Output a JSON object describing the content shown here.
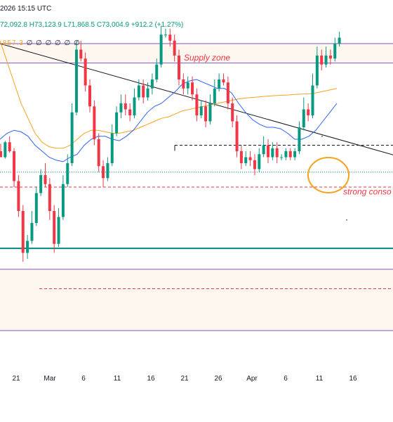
{
  "header": {
    "datetime": "2026 15:15 UTC",
    "ohlc": "72,092.8 H73,123.9 L71,868.5 C73,004.9 +912.2 (+1.27%)",
    "ma_value": ".857.3",
    "ma_rest": "∅ ∅ ∅ ∅ ∅ ∅"
  },
  "annotations": {
    "supply_zone": "Supply zone",
    "consolidation": "strong conso"
  },
  "colors": {
    "up": "#089981",
    "down": "#f23645",
    "ma_blue": "#2962ff",
    "ma_orange": "#f7a21b",
    "support": "#00897b",
    "zone_border": "#7e57c2",
    "zone_fill": "#fdf7ef",
    "circle": "#f7a21b"
  },
  "chart_data": {
    "type": "candlestick",
    "x_tick_labels": [
      "21",
      "Mar",
      "6",
      "11",
      "16",
      "21",
      "26",
      "Apr",
      "6",
      "11",
      "16"
    ],
    "candles": [
      [
        0.64,
        0.62,
        0.665,
        0.625
      ],
      [
        0.62,
        0.67,
        0.615,
        0.675
      ],
      [
        0.67,
        0.64,
        0.69,
        0.635
      ],
      [
        0.64,
        0.54,
        0.65,
        0.52
      ],
      [
        0.54,
        0.44,
        0.56,
        0.42
      ],
      [
        0.44,
        0.3,
        0.46,
        0.27
      ],
      [
        0.3,
        0.34,
        0.28,
        0.36
      ],
      [
        0.34,
        0.4,
        0.33,
        0.44
      ],
      [
        0.4,
        0.5,
        0.39,
        0.52
      ],
      [
        0.5,
        0.56,
        0.49,
        0.58
      ],
      [
        0.56,
        0.53,
        0.6,
        0.52
      ],
      [
        0.53,
        0.44,
        0.55,
        0.41
      ],
      [
        0.44,
        0.33,
        0.46,
        0.3
      ],
      [
        0.33,
        0.42,
        0.32,
        0.45
      ],
      [
        0.42,
        0.53,
        0.41,
        0.56
      ],
      [
        0.53,
        0.6,
        0.52,
        0.63
      ],
      [
        0.6,
        0.77,
        0.59,
        0.8
      ],
      [
        0.77,
        0.98,
        0.76,
        1.01
      ],
      [
        0.98,
        0.95,
        1.01,
        0.94
      ],
      [
        0.95,
        0.86,
        0.97,
        0.84
      ],
      [
        0.86,
        0.79,
        0.88,
        0.77
      ],
      [
        0.79,
        0.68,
        0.81,
        0.66
      ],
      [
        0.68,
        0.59,
        0.7,
        0.57
      ],
      [
        0.59,
        0.55,
        0.61,
        0.52
      ],
      [
        0.55,
        0.6,
        0.54,
        0.62
      ],
      [
        0.6,
        0.7,
        0.59,
        0.73
      ],
      [
        0.7,
        0.77,
        0.69,
        0.79
      ],
      [
        0.77,
        0.8,
        0.75,
        0.83
      ],
      [
        0.8,
        0.78,
        0.83,
        0.76
      ],
      [
        0.78,
        0.76,
        0.8,
        0.74
      ],
      [
        0.76,
        0.82,
        0.75,
        0.85
      ],
      [
        0.82,
        0.86,
        0.81,
        0.88
      ],
      [
        0.86,
        0.82,
        0.88,
        0.8
      ],
      [
        0.82,
        0.85,
        0.81,
        0.87
      ],
      [
        0.85,
        0.88,
        0.83,
        0.9
      ],
      [
        0.88,
        0.93,
        0.87,
        0.95
      ],
      [
        0.93,
        1.03,
        0.92,
        1.06
      ],
      [
        1.03,
        1.03,
        1.05,
        1.02
      ],
      [
        1.03,
        1.01,
        1.05,
        0.99
      ],
      [
        1.01,
        0.96,
        1.03,
        0.94
      ],
      [
        0.96,
        0.88,
        0.98,
        0.86
      ],
      [
        0.88,
        0.85,
        0.9,
        0.83
      ],
      [
        0.85,
        0.87,
        0.83,
        0.89
      ],
      [
        0.87,
        0.83,
        0.89,
        0.81
      ],
      [
        0.83,
        0.76,
        0.85,
        0.74
      ],
      [
        0.76,
        0.79,
        0.75,
        0.81
      ],
      [
        0.79,
        0.74,
        0.81,
        0.72
      ],
      [
        0.74,
        0.8,
        0.73,
        0.83
      ],
      [
        0.8,
        0.85,
        0.79,
        0.88
      ],
      [
        0.85,
        0.88,
        0.84,
        0.9
      ],
      [
        0.88,
        0.87,
        0.9,
        0.86
      ],
      [
        0.87,
        0.8,
        0.89,
        0.78
      ],
      [
        0.8,
        0.74,
        0.82,
        0.72
      ],
      [
        0.74,
        0.64,
        0.76,
        0.62
      ],
      [
        0.64,
        0.6,
        0.66,
        0.58
      ],
      [
        0.6,
        0.62,
        0.59,
        0.64
      ],
      [
        0.62,
        0.61,
        0.64,
        0.59
      ],
      [
        0.61,
        0.58,
        0.63,
        0.56
      ],
      [
        0.58,
        0.63,
        0.57,
        0.65
      ],
      [
        0.63,
        0.66,
        0.62,
        0.69
      ],
      [
        0.66,
        0.62,
        0.68,
        0.6
      ],
      [
        0.62,
        0.65,
        0.61,
        0.67
      ],
      [
        0.65,
        0.62,
        0.67,
        0.6
      ],
      [
        0.62,
        0.62,
        0.63,
        0.61
      ],
      [
        0.62,
        0.64,
        0.61,
        0.65
      ],
      [
        0.64,
        0.62,
        0.65,
        0.61
      ],
      [
        0.62,
        0.64,
        0.61,
        0.65
      ],
      [
        0.64,
        0.72,
        0.63,
        0.74
      ],
      [
        0.72,
        0.78,
        0.71,
        0.82
      ],
      [
        0.78,
        0.76,
        0.8,
        0.74
      ],
      [
        0.76,
        0.86,
        0.75,
        0.9
      ],
      [
        0.86,
        0.96,
        0.85,
        0.99
      ],
      [
        0.96,
        0.93,
        0.98,
        0.91
      ],
      [
        0.93,
        0.96,
        0.92,
        0.99
      ],
      [
        0.96,
        0.95,
        0.98,
        0.93
      ],
      [
        0.95,
        1.0,
        0.94,
        1.02
      ],
      [
        1.0,
        1.02,
        0.99,
        1.04
      ]
    ],
    "ma_orange": [
      [
        0,
        1.01
      ],
      [
        10,
        0.94
      ],
      [
        20,
        0.87
      ],
      [
        30,
        0.8
      ],
      [
        40,
        0.75
      ],
      [
        50,
        0.7
      ],
      [
        60,
        0.67
      ],
      [
        70,
        0.655
      ],
      [
        80,
        0.65
      ],
      [
        90,
        0.65
      ],
      [
        100,
        0.66
      ],
      [
        110,
        0.68
      ],
      [
        120,
        0.7
      ],
      [
        130,
        0.71
      ],
      [
        140,
        0.71
      ],
      [
        150,
        0.705
      ],
      [
        160,
        0.7
      ],
      [
        170,
        0.7
      ],
      [
        180,
        0.705
      ],
      [
        190,
        0.71
      ],
      [
        200,
        0.72
      ],
      [
        210,
        0.73
      ],
      [
        220,
        0.74
      ],
      [
        230,
        0.75
      ],
      [
        240,
        0.755
      ],
      [
        250,
        0.765
      ],
      [
        260,
        0.775
      ],
      [
        270,
        0.78
      ],
      [
        280,
        0.785
      ],
      [
        290,
        0.79
      ],
      [
        300,
        0.795
      ],
      [
        310,
        0.8
      ],
      [
        320,
        0.805
      ],
      [
        330,
        0.81
      ],
      [
        340,
        0.815
      ],
      [
        350,
        0.818
      ],
      [
        360,
        0.82
      ],
      [
        370,
        0.822
      ],
      [
        380,
        0.824
      ],
      [
        390,
        0.826
      ],
      [
        400,
        0.827
      ],
      [
        410,
        0.828
      ],
      [
        420,
        0.83
      ],
      [
        430,
        0.831
      ],
      [
        440,
        0.832
      ],
      [
        450,
        0.835
      ],
      [
        460,
        0.84
      ],
      [
        470,
        0.845
      ],
      [
        480,
        0.85
      ]
    ],
    "ma_blue": [
      [
        0,
        0.68
      ],
      [
        10,
        0.7
      ],
      [
        20,
        0.71
      ],
      [
        30,
        0.705
      ],
      [
        40,
        0.69
      ],
      [
        50,
        0.66
      ],
      [
        60,
        0.64
      ],
      [
        70,
        0.62
      ],
      [
        80,
        0.61
      ],
      [
        90,
        0.605
      ],
      [
        100,
        0.62
      ],
      [
        110,
        0.63
      ],
      [
        120,
        0.66
      ],
      [
        130,
        0.68
      ],
      [
        140,
        0.69
      ],
      [
        150,
        0.69
      ],
      [
        160,
        0.68
      ],
      [
        170,
        0.675
      ],
      [
        180,
        0.69
      ],
      [
        190,
        0.71
      ],
      [
        200,
        0.74
      ],
      [
        210,
        0.77
      ],
      [
        220,
        0.79
      ],
      [
        230,
        0.8
      ],
      [
        240,
        0.82
      ],
      [
        250,
        0.84
      ],
      [
        260,
        0.865
      ],
      [
        270,
        0.875
      ],
      [
        280,
        0.88
      ],
      [
        290,
        0.87
      ],
      [
        300,
        0.86
      ],
      [
        310,
        0.85
      ],
      [
        320,
        0.85
      ],
      [
        330,
        0.835
      ],
      [
        340,
        0.8
      ],
      [
        350,
        0.77
      ],
      [
        360,
        0.745
      ],
      [
        370,
        0.73
      ],
      [
        380,
        0.72
      ],
      [
        390,
        0.72
      ],
      [
        400,
        0.715
      ],
      [
        410,
        0.7
      ],
      [
        420,
        0.68
      ],
      [
        430,
        0.68
      ],
      [
        440,
        0.69
      ],
      [
        450,
        0.71
      ],
      [
        460,
        0.74
      ],
      [
        470,
        0.77
      ],
      [
        480,
        0.8
      ]
    ],
    "levels": {
      "supply_zone": [
        1.0,
        0.935
      ],
      "dashed_top": 0.66,
      "dotted_resistance": 0.57,
      "red_dashed_upper": 0.52,
      "support": 0.315,
      "lower_zone_top": 0.245,
      "red_dashed_lower": 0.18,
      "lower_zone_bottom": 0.04
    },
    "trendline": [
      [
        0,
        1.0
      ],
      [
        560,
        0.628
      ]
    ]
  }
}
